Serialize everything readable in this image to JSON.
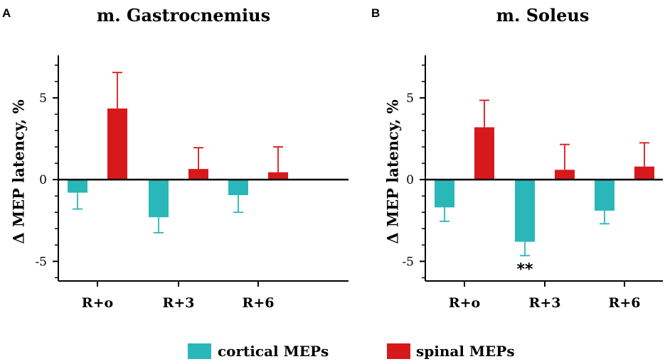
{
  "legend": [
    {
      "name": "cortical MEPs",
      "color": "#2ab7b9"
    },
    {
      "name": "spinal MEPs",
      "color": "#d7191c"
    }
  ],
  "chart_data": [
    {
      "panel": "A",
      "type": "bar",
      "title": "m. Gastrocnemius",
      "ylabel": "Δ MEP latency, %",
      "xlabel": "",
      "ylim": [
        -6.2,
        7.6
      ],
      "yticks": [
        -5,
        0,
        5
      ],
      "ytick_labels": [
        "-5",
        "0",
        "5"
      ],
      "categories": [
        "R+o",
        "R+3",
        "R+6"
      ],
      "series": [
        {
          "name": "cortical MEPs",
          "values": [
            -0.8,
            -2.3,
            -0.95
          ],
          "errors": [
            1.0,
            0.95,
            1.05
          ]
        },
        {
          "name": "spinal MEPs",
          "values": [
            4.35,
            0.65,
            0.45
          ],
          "errors": [
            2.2,
            1.3,
            1.55
          ]
        }
      ],
      "annotations": []
    },
    {
      "panel": "B",
      "type": "bar",
      "title": "m. Soleus",
      "ylabel": "Δ MEP latency, %",
      "xlabel": "",
      "ylim": [
        -6.2,
        7.6
      ],
      "yticks": [
        -5,
        0,
        5
      ],
      "ytick_labels": [
        "-5",
        "0",
        "5"
      ],
      "categories": [
        "R+o",
        "R+3",
        "R+6"
      ],
      "series": [
        {
          "name": "cortical MEPs",
          "values": [
            -1.7,
            -3.8,
            -1.9
          ],
          "errors": [
            0.85,
            0.85,
            0.8
          ]
        },
        {
          "name": "spinal MEPs",
          "values": [
            3.2,
            0.6,
            0.8
          ],
          "errors": [
            1.65,
            1.55,
            1.45
          ]
        }
      ],
      "annotations": [
        {
          "text": "**",
          "category": "R+3",
          "series": "cortical MEPs"
        }
      ]
    }
  ]
}
